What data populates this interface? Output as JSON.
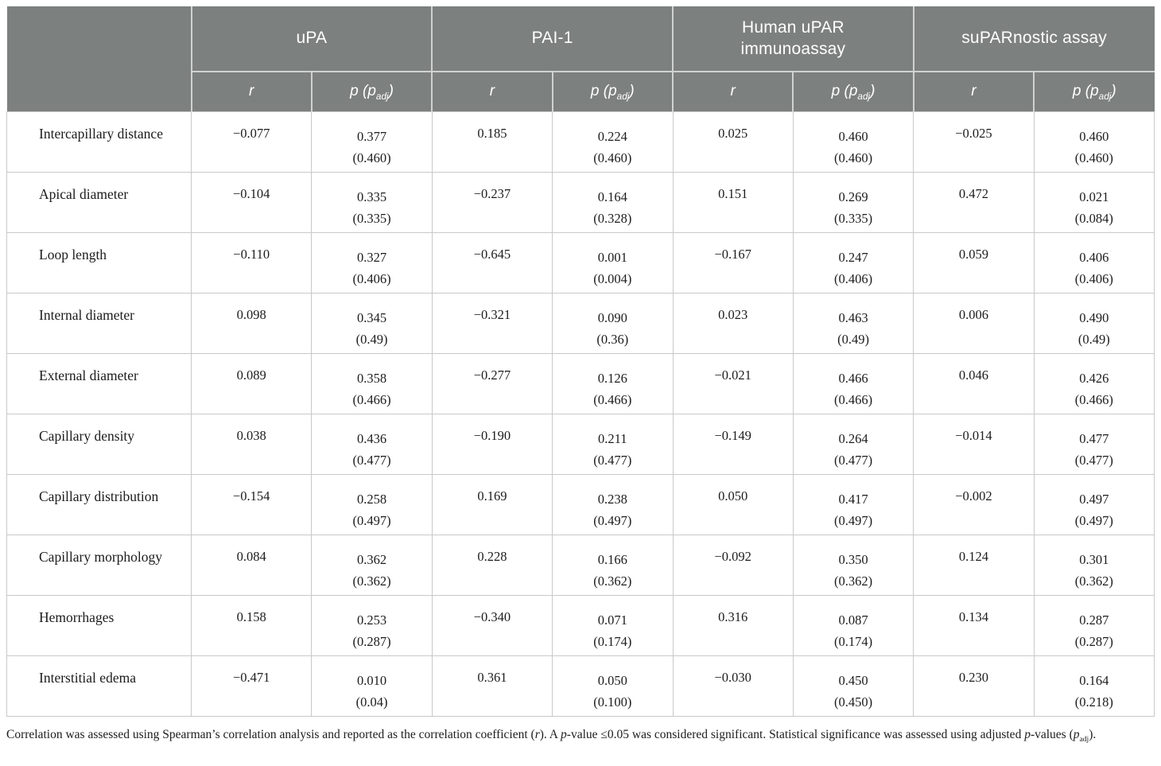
{
  "colors": {
    "header_bg": "#7c807e",
    "header_text": "#ffffff",
    "grid": "#c9c9c9",
    "body_text": "#1c1c1c"
  },
  "header": {
    "groups": [
      "uPA",
      "PAI-1",
      "Human uPAR immunoassay",
      "suPARnostic assay"
    ],
    "sub_r": "r",
    "sub_p_segments": [
      {
        "t": "p",
        "style": "i"
      },
      {
        "t": " (",
        "style": ""
      },
      {
        "t": "p",
        "style": "i"
      },
      {
        "t": "adj",
        "style": "sub"
      },
      {
        "t": ")",
        "style": ""
      }
    ]
  },
  "rows": [
    {
      "label": "Intercapillary distance",
      "values": [
        {
          "r": "−0.077",
          "p": "0.377",
          "padj": "(0.460)"
        },
        {
          "r": "0.185",
          "p": "0.224",
          "padj": "(0.460)"
        },
        {
          "r": "0.025",
          "p": "0.460",
          "padj": "(0.460)"
        },
        {
          "r": "−0.025",
          "p": "0.460",
          "padj": "(0.460)"
        }
      ]
    },
    {
      "label": "Apical diameter",
      "values": [
        {
          "r": "−0.104",
          "p": "0.335",
          "padj": "(0.335)"
        },
        {
          "r": "−0.237",
          "p": "0.164",
          "padj": "(0.328)"
        },
        {
          "r": "0.151",
          "p": "0.269",
          "padj": "(0.335)"
        },
        {
          "r": "0.472",
          "p": "0.021",
          "padj": "(0.084)"
        }
      ]
    },
    {
      "label": "Loop length",
      "values": [
        {
          "r": "−0.110",
          "p": "0.327",
          "padj": "(0.406)"
        },
        {
          "r": "−0.645",
          "p": "0.001",
          "padj": "(0.004)"
        },
        {
          "r": "−0.167",
          "p": "0.247",
          "padj": "(0.406)"
        },
        {
          "r": "0.059",
          "p": "0.406",
          "padj": "(0.406)"
        }
      ]
    },
    {
      "label": "Internal diameter",
      "values": [
        {
          "r": "0.098",
          "p": "0.345",
          "padj": "(0.49)"
        },
        {
          "r": "−0.321",
          "p": "0.090",
          "padj": "(0.36)"
        },
        {
          "r": "0.023",
          "p": "0.463",
          "padj": "(0.49)"
        },
        {
          "r": "0.006",
          "p": "0.490",
          "padj": "(0.49)"
        }
      ]
    },
    {
      "label": "External diameter",
      "values": [
        {
          "r": "0.089",
          "p": "0.358",
          "padj": "(0.466)"
        },
        {
          "r": "−0.277",
          "p": "0.126",
          "padj": "(0.466)"
        },
        {
          "r": "−0.021",
          "p": "0.466",
          "padj": "(0.466)"
        },
        {
          "r": "0.046",
          "p": "0.426",
          "padj": "(0.466)"
        }
      ]
    },
    {
      "label": "Capillary density",
      "values": [
        {
          "r": "0.038",
          "p": "0.436",
          "padj": "(0.477)"
        },
        {
          "r": "−0.190",
          "p": "0.211",
          "padj": "(0.477)"
        },
        {
          "r": "−0.149",
          "p": "0.264",
          "padj": "(0.477)"
        },
        {
          "r": "−0.014",
          "p": "0.477",
          "padj": "(0.477)"
        }
      ]
    },
    {
      "label": "Capillary distribution",
      "values": [
        {
          "r": "−0.154",
          "p": "0.258",
          "padj": "(0.497)"
        },
        {
          "r": "0.169",
          "p": "0.238",
          "padj": "(0.497)"
        },
        {
          "r": "0.050",
          "p": "0.417",
          "padj": "(0.497)"
        },
        {
          "r": "−0.002",
          "p": "0.497",
          "padj": "(0.497)"
        }
      ]
    },
    {
      "label": "Capillary morphology",
      "values": [
        {
          "r": "0.084",
          "p": "0.362",
          "padj": "(0.362)"
        },
        {
          "r": "0.228",
          "p": "0.166",
          "padj": "(0.362)"
        },
        {
          "r": "−0.092",
          "p": "0.350",
          "padj": "(0.362)"
        },
        {
          "r": "0.124",
          "p": "0.301",
          "padj": "(0.362)"
        }
      ]
    },
    {
      "label": "Hemorrhages",
      "values": [
        {
          "r": "0.158",
          "p": "0.253",
          "padj": "(0.287)"
        },
        {
          "r": "−0.340",
          "p": "0.071",
          "padj": "(0.174)"
        },
        {
          "r": "0.316",
          "p": "0.087",
          "padj": "(0.174)"
        },
        {
          "r": "0.134",
          "p": "0.287",
          "padj": "(0.287)"
        }
      ]
    },
    {
      "label": "Interstitial edema",
      "values": [
        {
          "r": "−0.471",
          "p": "0.010",
          "padj": "(0.04)"
        },
        {
          "r": "0.361",
          "p": "0.050",
          "padj": "(0.100)"
        },
        {
          "r": "−0.030",
          "p": "0.450",
          "padj": "(0.450)"
        },
        {
          "r": "0.230",
          "p": "0.164",
          "padj": "(0.218)"
        }
      ]
    }
  ],
  "footnote_segments": [
    {
      "t": "Correlation was assessed using Spearman’s correlation analysis and reported as the correlation coefficient (",
      "style": ""
    },
    {
      "t": "r",
      "style": "i"
    },
    {
      "t": "). A ",
      "style": ""
    },
    {
      "t": "p",
      "style": "i"
    },
    {
      "t": "-value ≤0.05 was considered significant. Statistical significance was assessed using adjusted ",
      "style": ""
    },
    {
      "t": "p",
      "style": "i"
    },
    {
      "t": "-values (",
      "style": ""
    },
    {
      "t": "p",
      "style": "i"
    },
    {
      "t": "adj",
      "style": "sub"
    },
    {
      "t": ").",
      "style": ""
    }
  ]
}
